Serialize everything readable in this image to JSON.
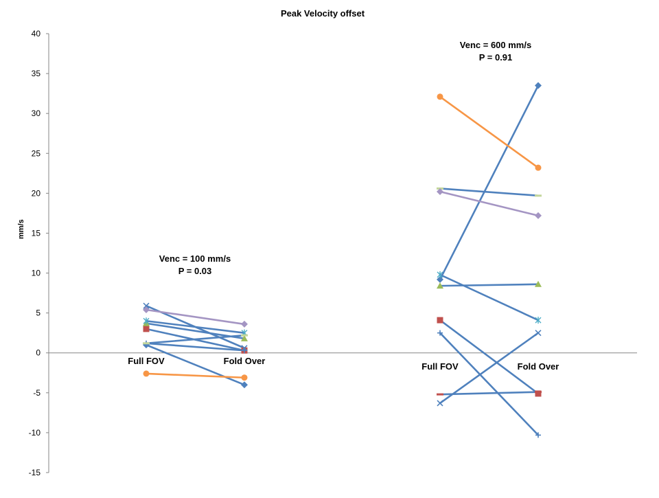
{
  "chart_data": {
    "type": "line",
    "title": "Peak Velocity offset",
    "ylabel": "mm/s",
    "xlabel": "",
    "ylim": [
      -15,
      40
    ],
    "yticks": [
      40,
      35,
      30,
      25,
      20,
      15,
      10,
      5,
      0,
      -5,
      -10,
      -15
    ],
    "grid": false,
    "legend": "none",
    "categories": [
      "Full FOV",
      "Fold Over"
    ],
    "panels": [
      {
        "annotation": [
          "Venc  = 100 mm/s",
          "P = 0.03"
        ],
        "categories": [
          "Full FOV",
          "Fold Over"
        ],
        "series": [
          {
            "values": [
              1.0,
              -4.0
            ],
            "color": "#4f81bd",
            "line": "#4f81bd",
            "marker": "diamond"
          },
          {
            "values": [
              3.0,
              0.3
            ],
            "color": "#c0504d",
            "line": "#4f81bd",
            "marker": "square"
          },
          {
            "values": [
              3.7,
              1.8
            ],
            "color": "#9bbb59",
            "line": "#4f81bd",
            "marker": "triangle"
          },
          {
            "values": [
              5.9,
              0.6
            ],
            "color": "#4f81bd",
            "line": "#4f81bd",
            "marker": "x"
          },
          {
            "values": [
              4.0,
              2.5
            ],
            "color": "#4bacc6",
            "line": "#4f81bd",
            "marker": "asterisk"
          },
          {
            "values": [
              -2.6,
              -3.1
            ],
            "color": "#f79646",
            "line": "#f79646",
            "marker": "circle"
          },
          {
            "values": [
              1.2,
              0.3
            ],
            "color": "#4f81bd",
            "line": "#4f81bd",
            "marker": "plus"
          },
          {
            "values": [
              1.2,
              2.2
            ],
            "color": "#c3d69b",
            "line": "#4f81bd",
            "marker": "dash"
          },
          {
            "values": [
              5.4,
              3.6
            ],
            "color": "#a495c3",
            "line": "#a495c3",
            "marker": "diamond"
          }
        ]
      },
      {
        "annotation": [
          "Venc  = 600 mm/s",
          "P = 0.91"
        ],
        "categories": [
          "Full FOV",
          "Fold Over"
        ],
        "series": [
          {
            "values": [
              9.2,
              33.5
            ],
            "color": "#4f81bd",
            "line": "#4f81bd",
            "marker": "diamond"
          },
          {
            "values": [
              4.1,
              -5.1
            ],
            "color": "#c0504d",
            "line": "#4f81bd",
            "marker": "square"
          },
          {
            "values": [
              8.4,
              8.6
            ],
            "color": "#9bbb59",
            "line": "#4f81bd",
            "marker": "triangle"
          },
          {
            "values": [
              -6.3,
              2.5
            ],
            "color": "#4f81bd",
            "line": "#4f81bd",
            "marker": "x"
          },
          {
            "values": [
              9.8,
              4.1
            ],
            "color": "#4bacc6",
            "line": "#4f81bd",
            "marker": "asterisk"
          },
          {
            "values": [
              32.1,
              23.2
            ],
            "color": "#f79646",
            "line": "#f79646",
            "marker": "circle"
          },
          {
            "values": [
              2.5,
              -10.3
            ],
            "color": "#4f81bd",
            "line": "#4f81bd",
            "marker": "plus"
          },
          {
            "values": [
              -5.2,
              -4.9
            ],
            "color": "#c0504d",
            "line": "#4f81bd",
            "marker": "dash"
          },
          {
            "values": [
              20.6,
              19.7
            ],
            "color": "#c3d69b",
            "line": "#4f81bd",
            "marker": "dash"
          },
          {
            "values": [
              20.2,
              17.2
            ],
            "color": "#a495c3",
            "line": "#a495c3",
            "marker": "diamond"
          }
        ]
      }
    ]
  }
}
